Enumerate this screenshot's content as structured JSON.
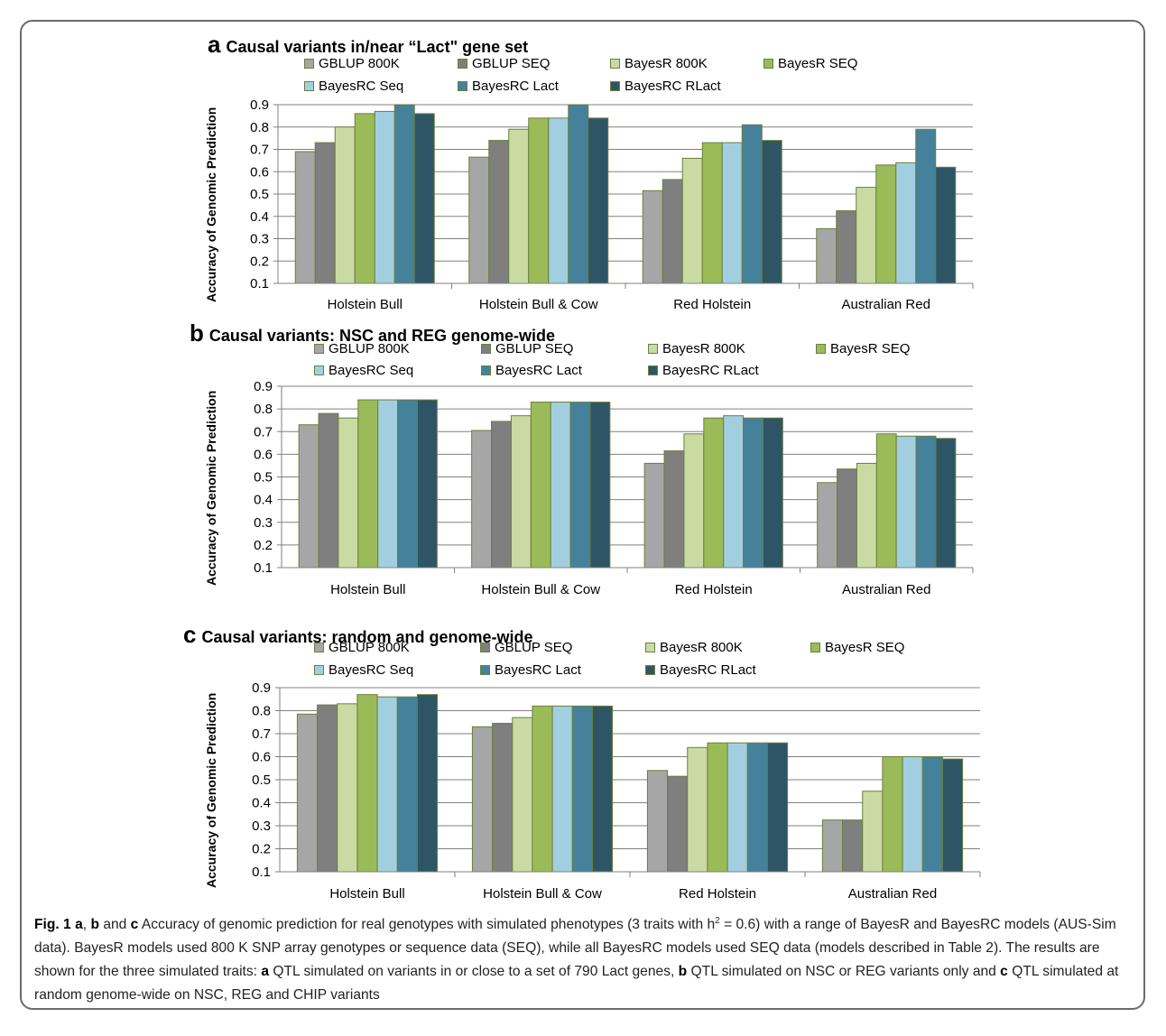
{
  "caption": {
    "fig_label": "Fig. 1",
    "a": "a",
    "sep1": ",",
    "b": "b",
    "and1": " and ",
    "c": "c",
    "text1": " Accuracy of genomic prediction for real genotypes with simulated phenotypes (3 traits with h",
    "sup": "2",
    "text2": " = 0.6) with a range of BayesR and BayesRC models (AUS-Sim data). BayesR models used 800 K SNP array genotypes or sequence data (SEQ), while all BayesRC models used SEQ data (models described in Table 2). The results are shown for the three simulated traits: ",
    "qa": "a",
    "text3": " QTL simulated on variants in or close to a set of 790 Lact genes, ",
    "qb": "b",
    "text4": " QTL simulated on NSC or REG variants only and ",
    "qc": "c",
    "text5": " QTL simulated at random genome-wide on NSC, REG and CHIP variants"
  },
  "colors": {
    "GBLUP 800K": "#a6a6a6",
    "GBLUP SEQ": "#7f7f7f",
    "BayesR 800K": "#c9dba3",
    "BayesR SEQ": "#9bbb59",
    "BayesRC Seq": "#a2cfe0",
    "BayesRC Lact": "#45819a",
    "BayesRC RLact": "#2e5566",
    "bar_outline": "#6b7f3c"
  },
  "chart_data": [
    {
      "type": "bar",
      "panel_letter": "a",
      "title": "Causal variants in/near “Lact\" gene set",
      "ylabel": "Accuracy of Genomic Prediction",
      "xlabel": "",
      "ylim": [
        0.1,
        0.9
      ],
      "yticks": [
        "0.1",
        "0.2",
        "0.3",
        "0.4",
        "0.5",
        "0.6",
        "0.7",
        "0.8",
        "0.9"
      ],
      "grid": true,
      "legend": "top",
      "categories": [
        "Holstein Bull",
        "Holstein Bull & Cow",
        "Red Holstein",
        "Australian Red"
      ],
      "series": [
        {
          "name": "GBLUP 800K",
          "values": [
            0.69,
            0.665,
            0.515,
            0.345
          ]
        },
        {
          "name": "GBLUP SEQ",
          "values": [
            0.73,
            0.74,
            0.565,
            0.425
          ]
        },
        {
          "name": "BayesR 800K",
          "values": [
            0.8,
            0.79,
            0.66,
            0.53
          ]
        },
        {
          "name": "BayesR SEQ",
          "values": [
            0.86,
            0.84,
            0.73,
            0.63
          ]
        },
        {
          "name": "BayesRC Seq",
          "values": [
            0.87,
            0.84,
            0.73,
            0.64
          ]
        },
        {
          "name": "BayesRC Lact",
          "values": [
            0.9,
            0.9,
            0.81,
            0.79
          ]
        },
        {
          "name": "BayesRC RLact",
          "values": [
            0.86,
            0.84,
            0.74,
            0.62
          ]
        }
      ]
    },
    {
      "type": "bar",
      "panel_letter": "b",
      "title": "Causal variants: NSC and REG genome-wide",
      "ylabel": "Accuracy of Genomic Prediction",
      "xlabel": "",
      "ylim": [
        0.1,
        0.9
      ],
      "yticks": [
        "0.1",
        "0.2",
        "0.3",
        "0.4",
        "0.5",
        "0.6",
        "0.7",
        "0.8",
        "0.9"
      ],
      "grid": true,
      "legend": "top",
      "categories": [
        "Holstein Bull",
        "Holstein Bull & Cow",
        "Red Holstein",
        "Australian Red"
      ],
      "series": [
        {
          "name": "GBLUP 800K",
          "values": [
            0.73,
            0.705,
            0.56,
            0.475
          ]
        },
        {
          "name": "GBLUP SEQ",
          "values": [
            0.78,
            0.745,
            0.615,
            0.535
          ]
        },
        {
          "name": "BayesR 800K",
          "values": [
            0.76,
            0.77,
            0.69,
            0.56
          ]
        },
        {
          "name": "BayesR SEQ",
          "values": [
            0.84,
            0.83,
            0.76,
            0.69
          ]
        },
        {
          "name": "BayesRC Seq",
          "values": [
            0.84,
            0.83,
            0.77,
            0.68
          ]
        },
        {
          "name": "BayesRC Lact",
          "values": [
            0.84,
            0.83,
            0.76,
            0.68
          ]
        },
        {
          "name": "BayesRC RLact",
          "values": [
            0.84,
            0.83,
            0.76,
            0.67
          ]
        }
      ]
    },
    {
      "type": "bar",
      "panel_letter": "c",
      "title": "Causal variants: random and genome-wide",
      "ylabel": "Accuracy of Genomic Prediction",
      "xlabel": "",
      "ylim": [
        0.1,
        0.9
      ],
      "yticks": [
        "0.1",
        "0.2",
        "0.3",
        "0.4",
        "0.5",
        "0.6",
        "0.7",
        "0.8",
        "0.9"
      ],
      "grid": true,
      "legend": "top",
      "categories": [
        "Holstein Bull",
        "Holstein Bull & Cow",
        "Red Holstein",
        "Australian Red"
      ],
      "series": [
        {
          "name": "GBLUP 800K",
          "values": [
            0.785,
            0.73,
            0.54,
            0.325
          ]
        },
        {
          "name": "GBLUP SEQ",
          "values": [
            0.825,
            0.745,
            0.515,
            0.325
          ]
        },
        {
          "name": "BayesR 800K",
          "values": [
            0.83,
            0.77,
            0.64,
            0.45
          ]
        },
        {
          "name": "BayesR SEQ",
          "values": [
            0.87,
            0.82,
            0.66,
            0.6
          ]
        },
        {
          "name": "BayesRC Seq",
          "values": [
            0.86,
            0.82,
            0.66,
            0.6
          ]
        },
        {
          "name": "BayesRC Lact",
          "values": [
            0.86,
            0.82,
            0.66,
            0.6
          ]
        },
        {
          "name": "BayesRC RLact",
          "values": [
            0.87,
            0.82,
            0.66,
            0.59
          ]
        }
      ]
    }
  ]
}
